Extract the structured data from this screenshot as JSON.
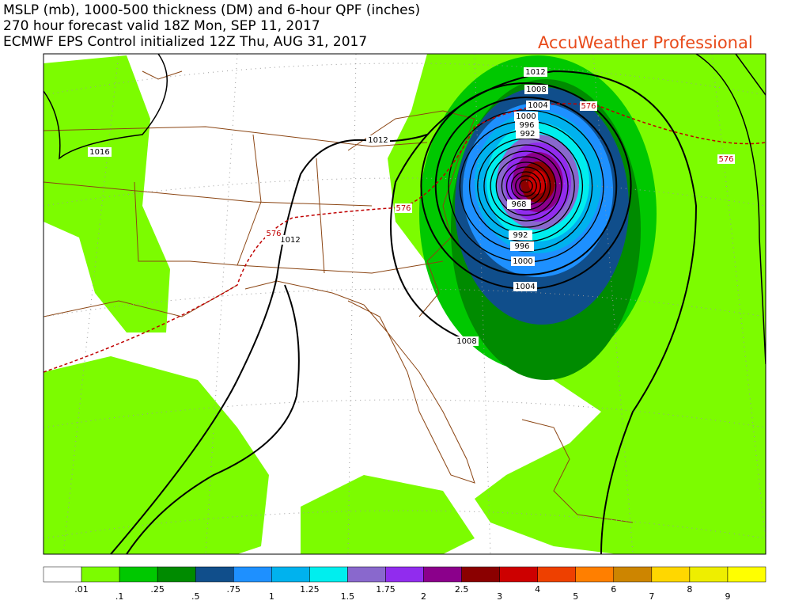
{
  "header": {
    "lines": [
      "MSLP (mb), 1000-500 thickness (DM) and 6-hour QPF (inches)",
      "270 hour forecast valid 18Z Mon, SEP 11, 2017",
      "ECMWF EPS Control initialized 12Z Thu, AUG 31, 2017"
    ],
    "brand": "AccuWeather Professional"
  },
  "map": {
    "isobar_labels": [
      "1012",
      "1008",
      "1004",
      "1000",
      "996",
      "992",
      "968",
      "992",
      "996",
      "1000",
      "1004",
      "1008",
      "1012",
      "1012",
      "1016"
    ],
    "thickness_labels": [
      "576",
      "576",
      "576",
      "576"
    ]
  },
  "colorbar": {
    "colors": [
      "#ffffff",
      "#7cfc00",
      "#00c800",
      "#008b00",
      "#104e8b",
      "#1e90ff",
      "#00b2ee",
      "#00eeee",
      "#8968cd",
      "#912cee",
      "#8b008b",
      "#8b0000",
      "#cd0000",
      "#ee4000",
      "#ff7f00",
      "#cd8500",
      "#ffd700",
      "#eeee00",
      "#ffff00"
    ],
    "labels": [
      ".01",
      ".1",
      ".25",
      ".5",
      ".75",
      "1",
      "1.25",
      "1.5",
      "1.75",
      "2",
      "2.5",
      "3",
      "4",
      "5",
      "6",
      "7",
      "8",
      "9"
    ]
  }
}
